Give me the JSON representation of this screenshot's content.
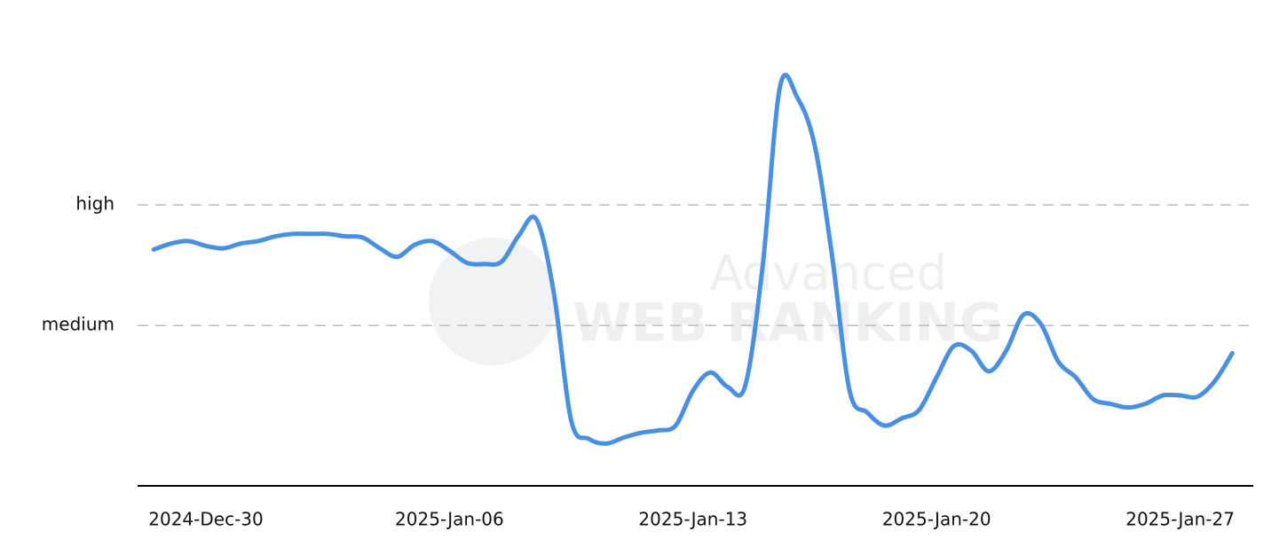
{
  "chart_data": {
    "type": "line",
    "watermark": {
      "line1": "Advanced",
      "line2": "WEB RANKING"
    },
    "categories": [
      null,
      null,
      null,
      "2024-Dec-30",
      null,
      null,
      null,
      null,
      null,
      null,
      null,
      null,
      null,
      null,
      null,
      null,
      null,
      "2025-Jan-06",
      null,
      null,
      null,
      null,
      null,
      null,
      null,
      null,
      null,
      null,
      null,
      null,
      null,
      "2025-Jan-13",
      null,
      null,
      null,
      null,
      null,
      null,
      null,
      null,
      null,
      null,
      null,
      null,
      null,
      "2025-Jan-20",
      null,
      null,
      null,
      null,
      null,
      null,
      null,
      null,
      null,
      null,
      null,
      null,
      null,
      "2025-Jan-27",
      null,
      null,
      null
    ],
    "series": [
      {
        "color": "#4a90e2",
        "values": [
          2.63,
          2.68,
          2.7,
          2.66,
          2.64,
          2.68,
          2.7,
          2.74,
          2.76,
          2.76,
          2.76,
          2.74,
          2.73,
          2.64,
          2.57,
          2.67,
          2.7,
          2.62,
          2.52,
          2.51,
          2.53,
          2.75,
          2.88,
          2.27,
          1.21,
          1.06,
          1.02,
          1.07,
          1.11,
          1.13,
          1.17,
          1.46,
          1.61,
          1.49,
          1.5,
          2.49,
          3.98,
          3.89,
          3.49,
          2.57,
          1.46,
          1.28,
          1.17,
          1.23,
          1.3,
          1.57,
          1.83,
          1.79,
          1.62,
          1.79,
          2.09,
          2.01,
          1.7,
          1.57,
          1.39,
          1.35,
          1.32,
          1.35,
          1.42,
          1.42,
          1.41,
          1.54,
          1.77
        ]
      }
    ],
    "ylim": [
      0.67,
      4.2
    ],
    "yticks": [
      {
        "value": 2,
        "label": "medium"
      },
      {
        "value": 3,
        "label": "high"
      }
    ],
    "grid": true
  }
}
